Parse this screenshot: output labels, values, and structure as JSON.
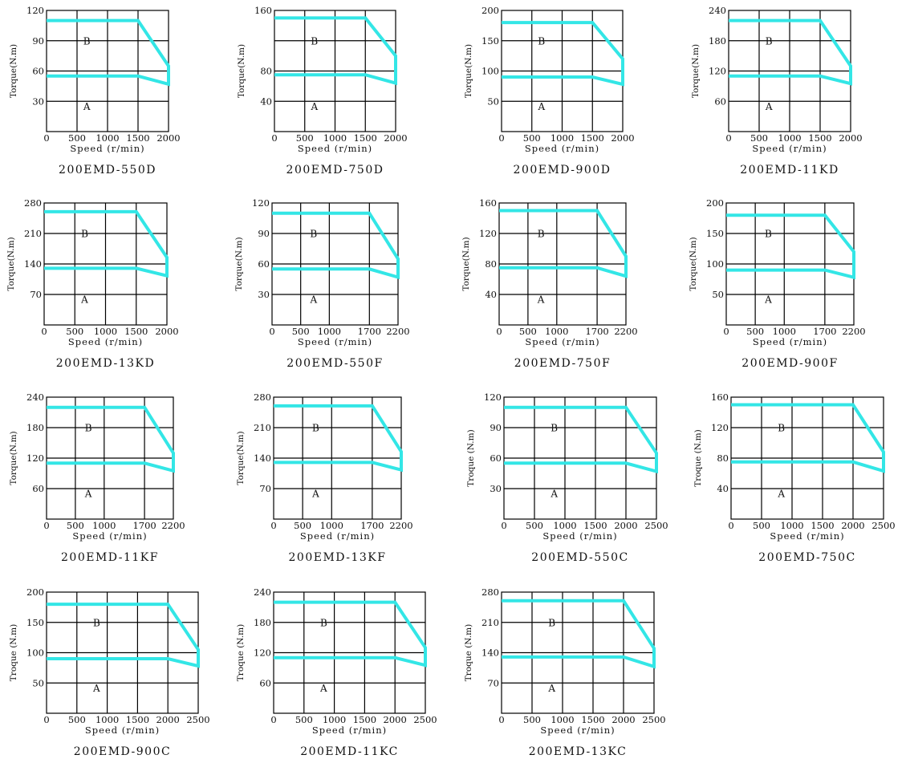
{
  "chart_data": [
    {
      "type": "line",
      "title": "200EMD-550D",
      "xlabel": "Speed (r/min)",
      "ylabel": "Torque(N.m)",
      "xlim": [
        0,
        2000
      ],
      "ylim": [
        0,
        120
      ],
      "xticks": [
        0,
        500,
        1000,
        1500,
        2000
      ],
      "xtick_labels": [
        "0",
        "500",
        "1000",
        "1500",
        "2000"
      ],
      "yticks": [
        30,
        60,
        90,
        120
      ],
      "ytick_labels": [
        "30",
        "60",
        "90",
        "120"
      ],
      "y_gridlines": [
        30,
        60,
        90
      ],
      "regions": {
        "A": "A",
        "B": "B"
      },
      "series": [
        {
          "x": [
            0,
            1500,
            2000,
            2000,
            1500,
            0
          ],
          "y": [
            110,
            110,
            65,
            47,
            55,
            55
          ]
        }
      ]
    },
    {
      "type": "line",
      "title": "200EMD-750D",
      "xlabel": "Speed (r/min)",
      "ylabel": "Torque(N.m)",
      "xlim": [
        0,
        2000
      ],
      "ylim": [
        0,
        160
      ],
      "xticks": [
        0,
        500,
        1000,
        1500,
        2000
      ],
      "xtick_labels": [
        "0",
        "500",
        "1000",
        "1500",
        "2000"
      ],
      "yticks": [
        40,
        80,
        120,
        160
      ],
      "ytick_labels": [
        "40",
        "80",
        "",
        "160"
      ],
      "y_gridlines": [
        40,
        80,
        120
      ],
      "regions": {
        "A": "A",
        "B": "B"
      },
      "series": [
        {
          "x": [
            0,
            1500,
            2000,
            2000,
            1500,
            0
          ],
          "y": [
            150,
            150,
            100,
            64,
            75,
            75
          ]
        }
      ]
    },
    {
      "type": "line",
      "title": "200EMD-900D",
      "xlabel": "Speed (r/min)",
      "ylabel": "Torque(N.m)",
      "xlim": [
        0,
        2000
      ],
      "ylim": [
        0,
        200
      ],
      "xticks": [
        0,
        500,
        1000,
        1500,
        2000
      ],
      "xtick_labels": [
        "0",
        "500",
        "1000",
        "1500",
        "2000"
      ],
      "yticks": [
        50,
        100,
        150,
        200
      ],
      "ytick_labels": [
        "50",
        "100",
        "150",
        "200"
      ],
      "y_gridlines": [
        50,
        100,
        150
      ],
      "regions": {
        "A": "A",
        "B": "B"
      },
      "series": [
        {
          "x": [
            0,
            1500,
            2000,
            2000,
            1500,
            0
          ],
          "y": [
            180,
            180,
            120,
            78,
            90,
            90
          ]
        }
      ]
    },
    {
      "type": "line",
      "title": "200EMD-11KD",
      "xlabel": "Speed (r/min)",
      "ylabel": "Torque(N.m)",
      "xlim": [
        0,
        2000
      ],
      "ylim": [
        0,
        240
      ],
      "xticks": [
        0,
        500,
        1000,
        1500,
        2000
      ],
      "xtick_labels": [
        "0",
        "500",
        "1000",
        "1500",
        "2000"
      ],
      "yticks": [
        60,
        120,
        180,
        240
      ],
      "ytick_labels": [
        "60",
        "120",
        "180",
        "240"
      ],
      "y_gridlines": [
        60,
        120,
        180
      ],
      "regions": {
        "A": "A",
        "B": "B"
      },
      "series": [
        {
          "x": [
            0,
            1500,
            2000,
            2000,
            1500,
            0
          ],
          "y": [
            220,
            220,
            130,
            95,
            110,
            110
          ]
        }
      ]
    },
    {
      "type": "line",
      "title": "200EMD-13KD",
      "xlabel": "Speed (r/min)",
      "ylabel": "Torque(N.m)",
      "xlim": [
        0,
        2000
      ],
      "ylim": [
        0,
        280
      ],
      "xticks": [
        0,
        500,
        1000,
        1500,
        2000
      ],
      "xtick_labels": [
        "0",
        "500",
        "1000",
        "1500",
        "2000"
      ],
      "yticks": [
        70,
        140,
        210,
        280
      ],
      "ytick_labels": [
        "70",
        "140",
        "210",
        "280"
      ],
      "y_gridlines": [
        70,
        140,
        210
      ],
      "regions": {
        "A": "A",
        "B": "B"
      },
      "series": [
        {
          "x": [
            0,
            1500,
            2000,
            2000,
            1500,
            0
          ],
          "y": [
            260,
            260,
            155,
            113,
            130,
            130
          ]
        }
      ]
    },
    {
      "type": "line",
      "title": "200EMD-550F",
      "xlabel": "Speed (r/min)",
      "ylabel": "Torque(N.m)",
      "xlim": [
        0,
        2200
      ],
      "ylim": [
        0,
        120
      ],
      "xticks": [
        0,
        500,
        1000,
        1700,
        2200
      ],
      "xtick_labels": [
        "0",
        "500",
        "1000",
        "1700",
        "2200"
      ],
      "yticks": [
        30,
        60,
        90,
        120
      ],
      "ytick_labels": [
        "30",
        "60",
        "90",
        "120"
      ],
      "y_gridlines": [
        30,
        60,
        90
      ],
      "regions": {
        "A": "A",
        "B": "B"
      },
      "series": [
        {
          "x": [
            0,
            1700,
            2200,
            2200,
            1700,
            0
          ],
          "y": [
            110,
            110,
            65,
            47,
            55,
            55
          ]
        }
      ]
    },
    {
      "type": "line",
      "title": "200EMD-750F",
      "xlabel": "Speed (r/min)",
      "ylabel": "Torque(N.m)",
      "xlim": [
        0,
        2200
      ],
      "ylim": [
        0,
        160
      ],
      "xticks": [
        0,
        500,
        1000,
        1700,
        2200
      ],
      "xtick_labels": [
        "0",
        "500",
        "1000",
        "1700",
        "2200"
      ],
      "yticks": [
        40,
        80,
        120,
        160
      ],
      "ytick_labels": [
        "40",
        "80",
        "120",
        "160"
      ],
      "y_gridlines": [
        40,
        80,
        120
      ],
      "regions": {
        "A": "A",
        "B": "B"
      },
      "series": [
        {
          "x": [
            0,
            1700,
            2200,
            2200,
            1700,
            0
          ],
          "y": [
            150,
            150,
            90,
            64,
            75,
            75
          ]
        }
      ]
    },
    {
      "type": "line",
      "title": "200EMD-900F",
      "xlabel": "Speed (r/min)",
      "ylabel": "Torque(N.m)",
      "xlim": [
        0,
        2200
      ],
      "ylim": [
        0,
        200
      ],
      "xticks": [
        0,
        500,
        1000,
        1700,
        2200
      ],
      "xtick_labels": [
        "0",
        "500",
        "1000",
        "1700",
        "2200"
      ],
      "yticks": [
        50,
        100,
        150,
        200
      ],
      "ytick_labels": [
        "50",
        "100",
        "150",
        "200"
      ],
      "y_gridlines": [
        50,
        100,
        150
      ],
      "regions": {
        "A": "A",
        "B": "B"
      },
      "series": [
        {
          "x": [
            0,
            1700,
            2200,
            2200,
            1700,
            0
          ],
          "y": [
            180,
            180,
            120,
            78,
            90,
            90
          ]
        }
      ]
    },
    {
      "type": "line",
      "title": "200EMD-11KF",
      "xlabel": "Speed (r/min)",
      "ylabel": "Torque(N.m)",
      "xlim": [
        0,
        2200
      ],
      "ylim": [
        0,
        240
      ],
      "xticks": [
        0,
        500,
        1000,
        1700,
        2200
      ],
      "xtick_labels": [
        "0",
        "500",
        "1000",
        "1700",
        "2200"
      ],
      "yticks": [
        60,
        120,
        180,
        240
      ],
      "ytick_labels": [
        "60",
        "120",
        "180",
        "240"
      ],
      "y_gridlines": [
        60,
        120,
        180
      ],
      "regions": {
        "A": "A",
        "B": "B"
      },
      "series": [
        {
          "x": [
            0,
            1700,
            2200,
            2200,
            1700,
            0
          ],
          "y": [
            220,
            220,
            130,
            95,
            110,
            110
          ]
        }
      ]
    },
    {
      "type": "line",
      "title": "200EMD-13KF",
      "xlabel": "Speed (r/min)",
      "ylabel": "Torque(N.m)",
      "xlim": [
        0,
        2200
      ],
      "ylim": [
        0,
        280
      ],
      "xticks": [
        0,
        500,
        1000,
        1700,
        2200
      ],
      "xtick_labels": [
        "0",
        "500",
        "1000",
        "1700",
        "2200"
      ],
      "yticks": [
        70,
        140,
        210,
        280
      ],
      "ytick_labels": [
        "70",
        "140",
        "210",
        "280"
      ],
      "y_gridlines": [
        70,
        140,
        210
      ],
      "regions": {
        "A": "A",
        "B": "B"
      },
      "series": [
        {
          "x": [
            0,
            1700,
            2200,
            2200,
            1700,
            0
          ],
          "y": [
            260,
            260,
            155,
            113,
            130,
            130
          ]
        }
      ]
    },
    {
      "type": "line",
      "title": "200EMD-550C",
      "xlabel": "Speed (r/min)",
      "ylabel": "Troque (N.m)",
      "xlim": [
        0,
        2500
      ],
      "ylim": [
        0,
        120
      ],
      "xticks": [
        0,
        500,
        1000,
        1500,
        2000,
        2500
      ],
      "xtick_labels": [
        "0",
        "500",
        "1000",
        "1500",
        "2000",
        "2500"
      ],
      "yticks": [
        30,
        60,
        90,
        120
      ],
      "ytick_labels": [
        "30",
        "60",
        "90",
        "120"
      ],
      "y_gridlines": [
        30,
        60,
        90
      ],
      "regions": {
        "A": "A",
        "B": "B"
      },
      "series": [
        {
          "x": [
            0,
            2000,
            2500,
            2500,
            2000,
            0
          ],
          "y": [
            110,
            110,
            65,
            47,
            55,
            55
          ]
        }
      ]
    },
    {
      "type": "line",
      "title": "200EMD-750C",
      "xlabel": "Speed (r/min)",
      "ylabel": "Troque (N.m)",
      "xlim": [
        0,
        2500
      ],
      "ylim": [
        0,
        160
      ],
      "xticks": [
        0,
        500,
        1000,
        1500,
        2000,
        2500
      ],
      "xtick_labels": [
        "0",
        "500",
        "1000",
        "1500",
        "2000",
        "2500"
      ],
      "yticks": [
        40,
        80,
        120,
        160
      ],
      "ytick_labels": [
        "40",
        "80",
        "120",
        "160"
      ],
      "y_gridlines": [
        40,
        80,
        120
      ],
      "regions": {
        "A": "A",
        "B": "B"
      },
      "series": [
        {
          "x": [
            0,
            2000,
            2500,
            2500,
            2000,
            0
          ],
          "y": [
            150,
            150,
            88,
            63,
            75,
            75
          ]
        }
      ]
    },
    {
      "type": "line",
      "title": "200EMD-900C",
      "xlabel": "Speed (r/min)",
      "ylabel": "Troque (N.m)",
      "xlim": [
        0,
        2500
      ],
      "ylim": [
        0,
        200
      ],
      "xticks": [
        0,
        500,
        1000,
        1500,
        2000,
        2500
      ],
      "xtick_labels": [
        "0",
        "500",
        "1000",
        "1500",
        "2000",
        "2500"
      ],
      "yticks": [
        50,
        100,
        150,
        200
      ],
      "ytick_labels": [
        "50",
        "100",
        "150",
        "200"
      ],
      "y_gridlines": [
        50,
        100,
        150
      ],
      "regions": {
        "A": "A",
        "B": "B"
      },
      "series": [
        {
          "x": [
            0,
            2000,
            2500,
            2500,
            2000,
            0
          ],
          "y": [
            180,
            180,
            105,
            78,
            90,
            90
          ]
        }
      ]
    },
    {
      "type": "line",
      "title": "200EMD-11KC",
      "xlabel": "Speed (r/min)",
      "ylabel": "Troque (N.m)",
      "xlim": [
        0,
        2500
      ],
      "ylim": [
        0,
        240
      ],
      "xticks": [
        0,
        500,
        1000,
        1500,
        2000,
        2500
      ],
      "xtick_labels": [
        "0",
        "500",
        "1000",
        "1500",
        "2000",
        "2500"
      ],
      "yticks": [
        60,
        120,
        180,
        240
      ],
      "ytick_labels": [
        "60",
        "120",
        "180",
        "240"
      ],
      "y_gridlines": [
        60,
        120,
        180
      ],
      "regions": {
        "A": "A",
        "B": "B"
      },
      "series": [
        {
          "x": [
            0,
            2000,
            2500,
            2500,
            2000,
            0
          ],
          "y": [
            220,
            220,
            130,
            95,
            110,
            110
          ]
        }
      ]
    },
    {
      "type": "line",
      "title": "200EMD-13KC",
      "xlabel": "Speed (r/min)",
      "ylabel": "Troque (N.m)",
      "xlim": [
        0,
        2500
      ],
      "ylim": [
        0,
        280
      ],
      "xticks": [
        0,
        500,
        1000,
        1500,
        2000,
        2500
      ],
      "xtick_labels": [
        "0",
        "500",
        "1000",
        "1500",
        "2000",
        "2500"
      ],
      "yticks": [
        70,
        140,
        210,
        280
      ],
      "ytick_labels": [
        "70",
        "140",
        "210",
        "280"
      ],
      "y_gridlines": [
        70,
        140,
        210
      ],
      "regions": {
        "A": "A",
        "B": "B"
      },
      "series": [
        {
          "x": [
            0,
            2000,
            2500,
            2500,
            2000,
            0
          ],
          "y": [
            260,
            260,
            150,
            108,
            130,
            130
          ]
        }
      ]
    }
  ],
  "colors": {
    "curve": "#33e6e6",
    "grid": "#000000",
    "text": "#111111"
  }
}
